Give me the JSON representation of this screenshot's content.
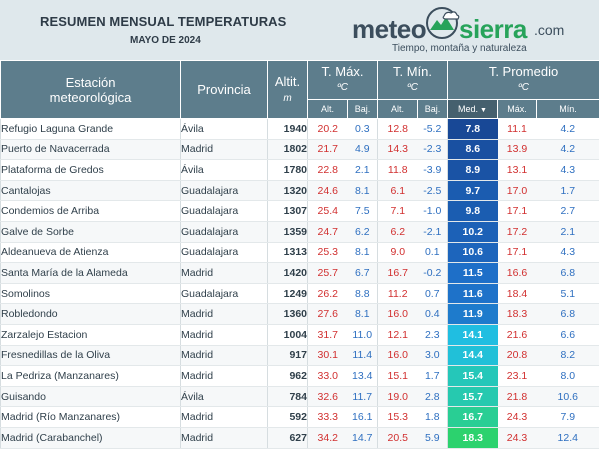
{
  "header": {
    "title": "RESUMEN MENSUAL TEMPERATURAS",
    "subtitle": "MAYO DE 2024"
  },
  "logo": {
    "word_meteo": "meteo",
    "word_sierra": "sierra",
    "word_com": ".com",
    "tagline": "Tiempo, montaña y naturaleza",
    "icon": "mountain-cloud-emblem-icon"
  },
  "table": {
    "col_station": "Estación meteorológica",
    "col_station_l1": "Estación",
    "col_station_l2": "meteorológica",
    "col_province": "Provincia",
    "col_alt": "Altit.",
    "col_alt_unit": "m",
    "grp_tmax": "T. Máx.",
    "grp_tmin": "T. Mín.",
    "grp_tavg": "T. Promedio",
    "unit_c": "ºC",
    "sub_alt": "Alt.",
    "sub_baj": "Baj.",
    "sub_med": "Med.",
    "sub_max": "Máx.",
    "sub_min": "Mín.",
    "sort_icon": "sort-descending-icon",
    "sort_glyph": "▼"
  },
  "colors": {
    "header_bg": "#5d7d8c",
    "high_value": "#d12f2f",
    "low_value": "#2e6fc0",
    "brand_green": "#27a35a"
  },
  "rows": [
    {
      "station": "Refugio Laguna Grande",
      "province": "Ávila",
      "alt": "1940",
      "tmax_alt": "20.2",
      "tmax_baj": "0.3",
      "tmin_alt": "12.8",
      "tmin_baj": "-5.2",
      "med": "7.8",
      "pmax": "11.1",
      "pmin": "4.2"
    },
    {
      "station": "Puerto de Navacerrada",
      "province": "Madrid",
      "alt": "1802",
      "tmax_alt": "21.7",
      "tmax_baj": "4.9",
      "tmin_alt": "14.3",
      "tmin_baj": "-2.3",
      "med": "8.6",
      "pmax": "13.9",
      "pmin": "4.2"
    },
    {
      "station": "Plataforma de Gredos",
      "province": "Ávila",
      "alt": "1780",
      "tmax_alt": "22.8",
      "tmax_baj": "2.1",
      "tmin_alt": "11.8",
      "tmin_baj": "-3.9",
      "med": "8.9",
      "pmax": "13.1",
      "pmin": "4.3"
    },
    {
      "station": "Cantalojas",
      "province": "Guadalajara",
      "alt": "1320",
      "tmax_alt": "24.6",
      "tmax_baj": "8.1",
      "tmin_alt": "6.1",
      "tmin_baj": "-2.5",
      "med": "9.7",
      "pmax": "17.0",
      "pmin": "1.7"
    },
    {
      "station": "Condemios de Arriba",
      "province": "Guadalajara",
      "alt": "1307",
      "tmax_alt": "25.4",
      "tmax_baj": "7.5",
      "tmin_alt": "7.1",
      "tmin_baj": "-1.0",
      "med": "9.8",
      "pmax": "17.1",
      "pmin": "2.7"
    },
    {
      "station": "Galve de Sorbe",
      "province": "Guadalajara",
      "alt": "1359",
      "tmax_alt": "24.7",
      "tmax_baj": "6.2",
      "tmin_alt": "6.2",
      "tmin_baj": "-2.1",
      "med": "10.2",
      "pmax": "17.2",
      "pmin": "2.1"
    },
    {
      "station": "Aldeanueva de Atienza",
      "province": "Guadalajara",
      "alt": "1313",
      "tmax_alt": "25.3",
      "tmax_baj": "8.1",
      "tmin_alt": "9.0",
      "tmin_baj": "0.1",
      "med": "10.6",
      "pmax": "17.1",
      "pmin": "4.3"
    },
    {
      "station": "Santa María de la Alameda",
      "province": "Madrid",
      "alt": "1420",
      "tmax_alt": "25.7",
      "tmax_baj": "6.7",
      "tmin_alt": "16.7",
      "tmin_baj": "-0.2",
      "med": "11.5",
      "pmax": "16.6",
      "pmin": "6.8"
    },
    {
      "station": "Somolinos",
      "province": "Guadalajara",
      "alt": "1249",
      "tmax_alt": "26.2",
      "tmax_baj": "8.8",
      "tmin_alt": "11.2",
      "tmin_baj": "0.7",
      "med": "11.6",
      "pmax": "18.4",
      "pmin": "5.1"
    },
    {
      "station": "Robledondo",
      "province": "Madrid",
      "alt": "1360",
      "tmax_alt": "27.6",
      "tmax_baj": "8.1",
      "tmin_alt": "16.0",
      "tmin_baj": "0.4",
      "med": "11.9",
      "pmax": "18.3",
      "pmin": "6.8"
    },
    {
      "station": "Zarzalejo Estacion",
      "province": "Madrid",
      "alt": "1004",
      "tmax_alt": "31.7",
      "tmax_baj": "11.0",
      "tmin_alt": "12.1",
      "tmin_baj": "2.3",
      "med": "14.1",
      "pmax": "21.6",
      "pmin": "6.6"
    },
    {
      "station": "Fresnedillas de la Oliva",
      "province": "Madrid",
      "alt": "917",
      "tmax_alt": "30.1",
      "tmax_baj": "11.4",
      "tmin_alt": "16.0",
      "tmin_baj": "3.0",
      "med": "14.4",
      "pmax": "20.8",
      "pmin": "8.2"
    },
    {
      "station": "La Pedriza (Manzanares)",
      "province": "Madrid",
      "alt": "962",
      "tmax_alt": "33.0",
      "tmax_baj": "13.4",
      "tmin_alt": "15.1",
      "tmin_baj": "1.7",
      "med": "15.4",
      "pmax": "23.1",
      "pmin": "8.0"
    },
    {
      "station": "Guisando",
      "province": "Ávila",
      "alt": "784",
      "tmax_alt": "32.6",
      "tmax_baj": "11.7",
      "tmin_alt": "19.0",
      "tmin_baj": "2.8",
      "med": "15.7",
      "pmax": "21.8",
      "pmin": "10.6"
    },
    {
      "station": "Madrid (Río Manzanares)",
      "province": "Madrid",
      "alt": "592",
      "tmax_alt": "33.3",
      "tmax_baj": "16.1",
      "tmin_alt": "15.3",
      "tmin_baj": "1.8",
      "med": "16.7",
      "pmax": "24.3",
      "pmin": "7.9"
    },
    {
      "station": "Madrid (Carabanchel)",
      "province": "Madrid",
      "alt": "627",
      "tmax_alt": "34.2",
      "tmax_baj": "14.7",
      "tmin_alt": "20.5",
      "tmin_baj": "5.9",
      "med": "18.3",
      "pmax": "24.3",
      "pmin": "12.4"
    }
  ]
}
